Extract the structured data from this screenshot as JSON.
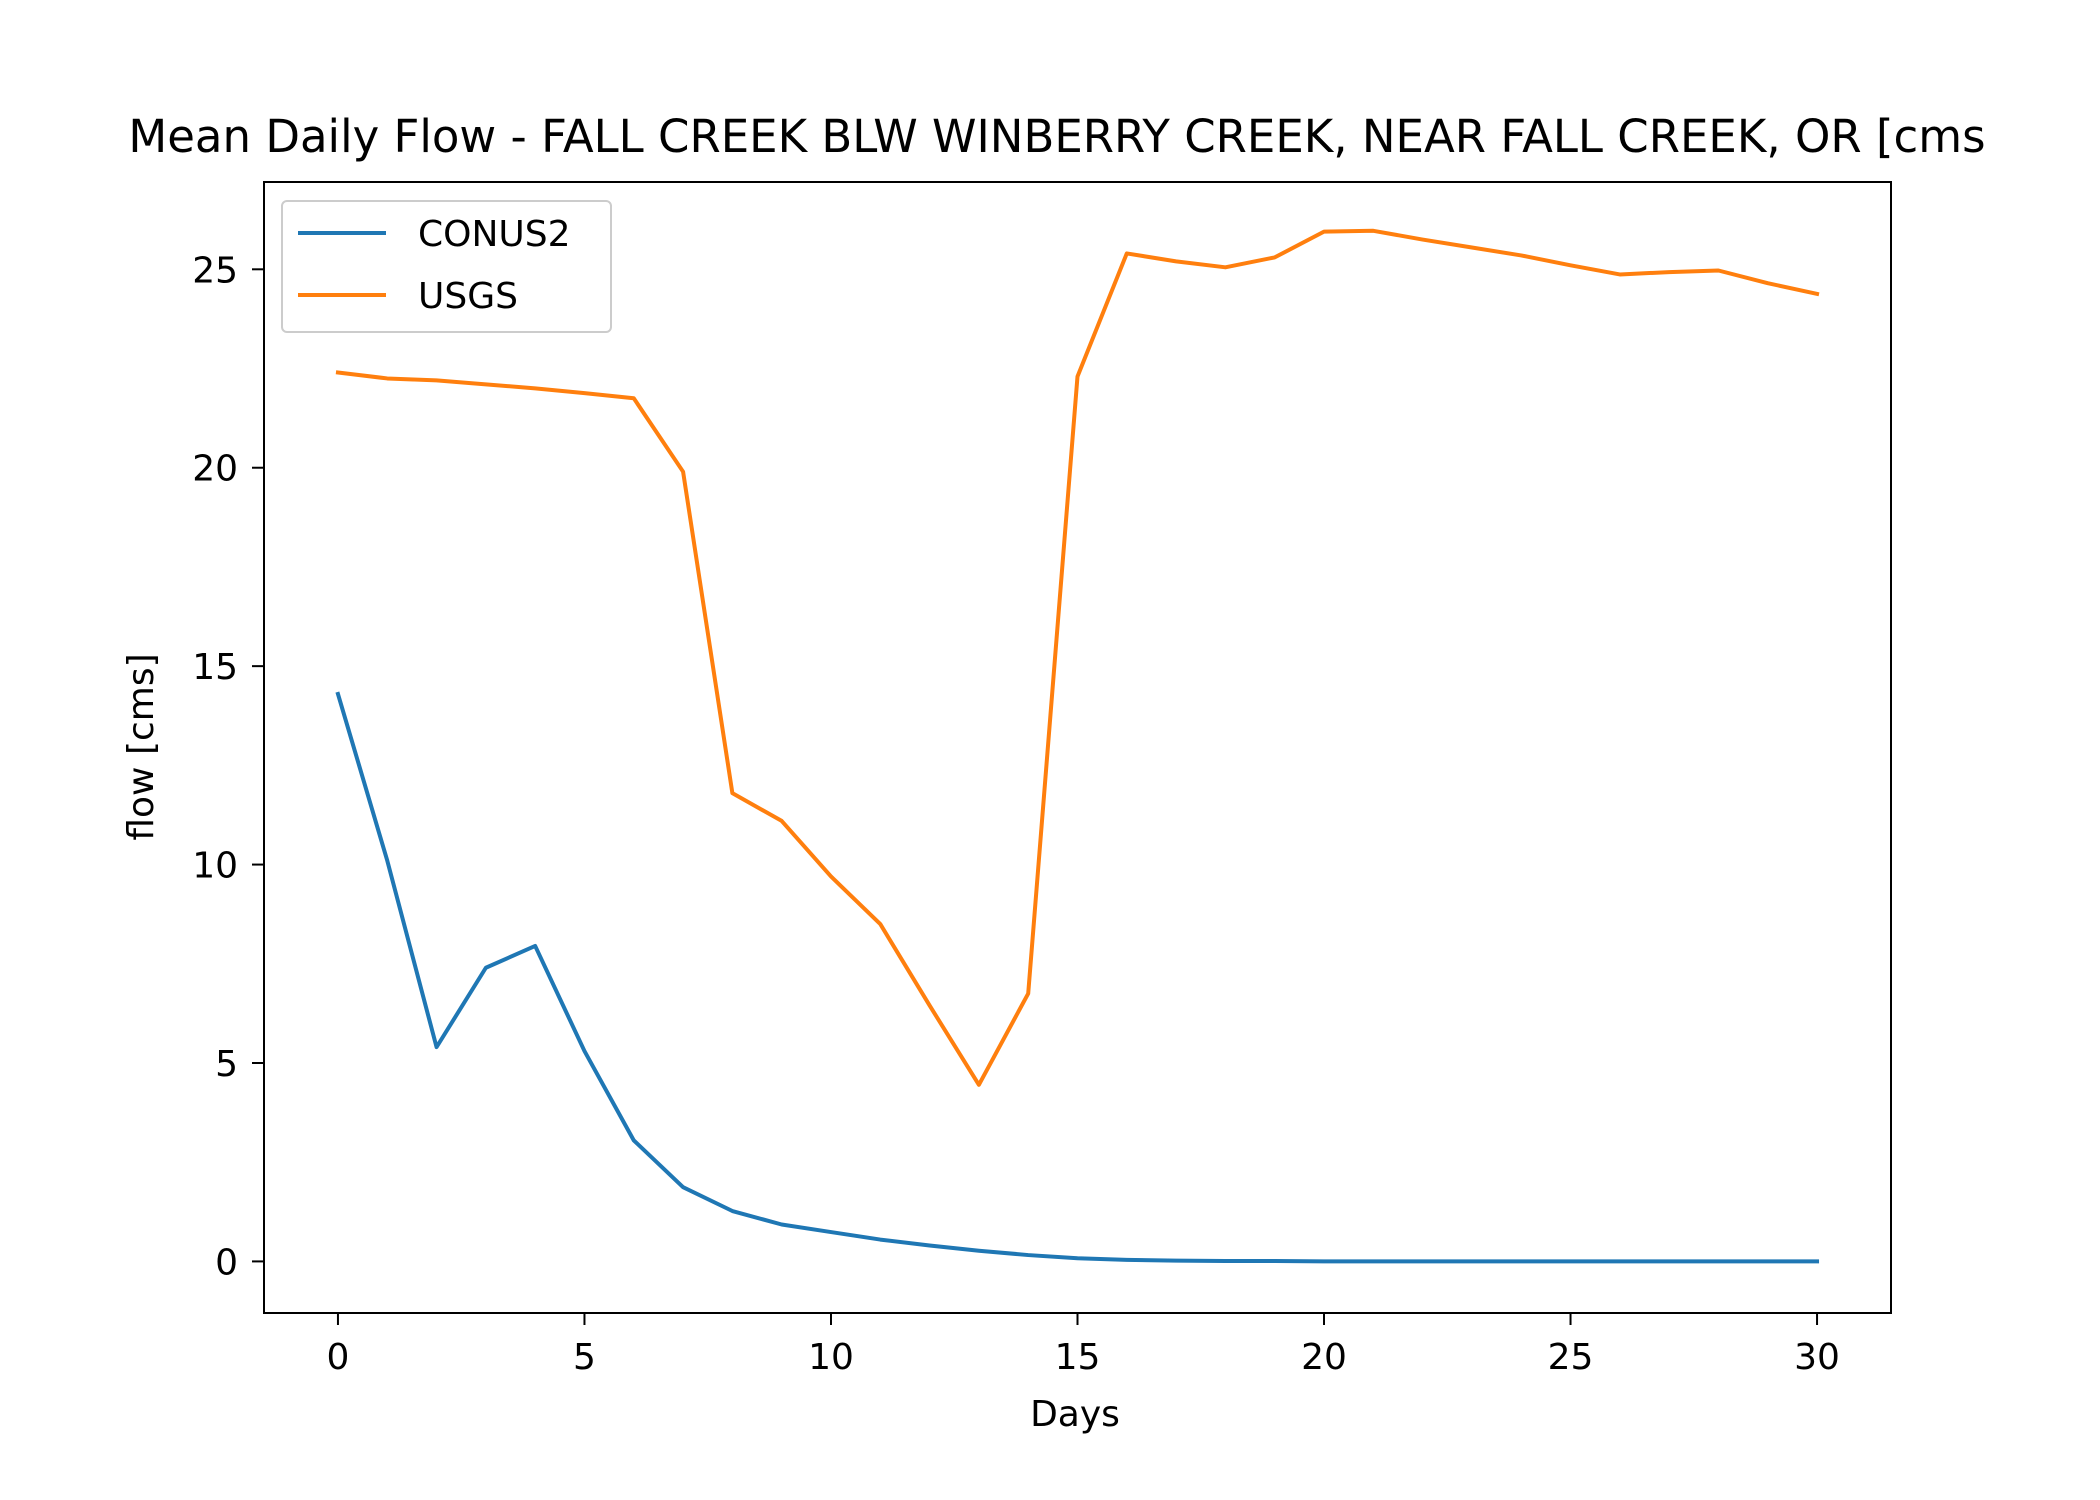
{
  "chart_data": {
    "type": "line",
    "title": "Mean Daily Flow - FALL CREEK BLW WINBERRY CREEK, NEAR FALL CREEK, OR [cms",
    "xlabel": "Days",
    "ylabel": "flow [cms]",
    "xlim": [
      -1.5,
      31.5
    ],
    "ylim": [
      -1.3,
      27.2
    ],
    "xticks": [
      0,
      5,
      10,
      15,
      20,
      25,
      30
    ],
    "xtick_labels": [
      "0",
      "5",
      "10",
      "15",
      "20",
      "25",
      "30"
    ],
    "yticks": [
      0,
      5,
      10,
      15,
      20,
      25
    ],
    "ytick_labels": [
      "0",
      "5",
      "10",
      "15",
      "20",
      "25"
    ],
    "grid": false,
    "legend_position": "top-left",
    "x": [
      0,
      1,
      2,
      3,
      4,
      5,
      6,
      7,
      8,
      9,
      10,
      11,
      12,
      13,
      14,
      15,
      16,
      17,
      18,
      19,
      20,
      21,
      22,
      23,
      24,
      25,
      26,
      27,
      28,
      29,
      30
    ],
    "series": [
      {
        "name": "CONUS2",
        "color": "#1f77b4",
        "values": [
          14.3,
          10.1,
          5.4,
          7.4,
          7.95,
          5.3,
          3.05,
          1.87,
          1.27,
          0.93,
          0.74,
          0.55,
          0.4,
          0.27,
          0.16,
          0.08,
          0.04,
          0.02,
          0.01,
          0.01,
          0.0,
          0.0,
          0.0,
          0.0,
          0.0,
          0.0,
          0.0,
          0.0,
          0.0,
          0.0,
          0.0
        ]
      },
      {
        "name": "USGS",
        "color": "#ff7f0e",
        "values": [
          22.4,
          22.25,
          22.2,
          22.1,
          22.0,
          21.88,
          21.75,
          19.9,
          11.8,
          11.1,
          9.7,
          8.5,
          6.45,
          4.45,
          6.75,
          22.3,
          25.4,
          25.2,
          25.05,
          25.3,
          25.95,
          25.97,
          25.75,
          25.55,
          25.35,
          25.1,
          24.87,
          24.93,
          24.97,
          24.65,
          24.38
        ]
      }
    ]
  }
}
